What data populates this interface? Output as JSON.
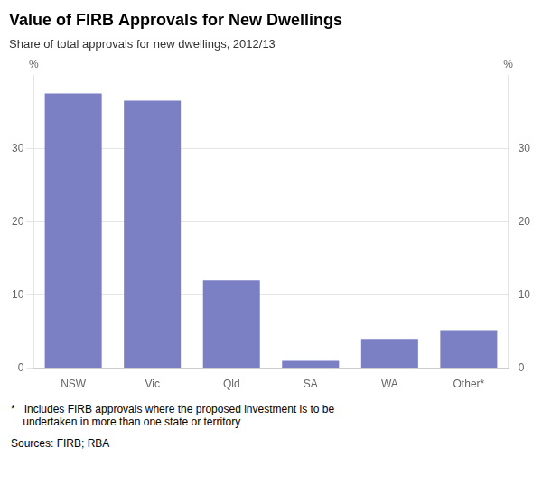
{
  "chart_data": {
    "type": "bar",
    "title": "Value of FIRB Approvals for New Dwellings",
    "subtitle": "Share of total approvals for new dwellings, 2012/13",
    "categories": [
      "NSW",
      "Vic",
      "Qld",
      "SA",
      "WA",
      "Other*"
    ],
    "values": [
      37.5,
      36.5,
      12.0,
      1.0,
      4.0,
      5.2
    ],
    "color": "#7b7fc4",
    "ylim": [
      0,
      40
    ],
    "yticks": [
      0,
      10,
      20,
      30
    ],
    "y2lim": [
      0,
      40
    ],
    "y2ticks": [
      0,
      10,
      20,
      30
    ],
    "ylabel": "%",
    "y2label": "%",
    "grid": true,
    "annotations": [
      "*   Includes FIRB approvals where the proposed investment is to be\n    undertaken in more than one state or territory",
      "Sources: FIRB; RBA"
    ]
  }
}
